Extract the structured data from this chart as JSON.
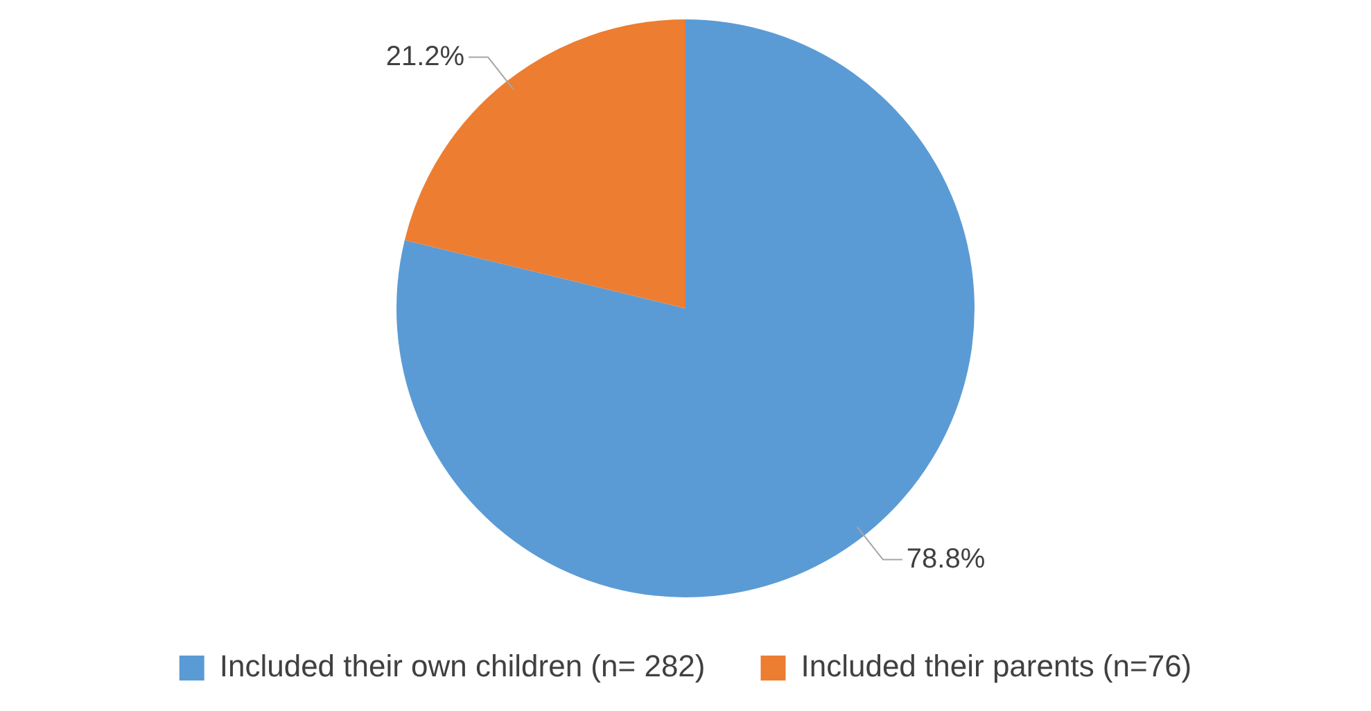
{
  "chart_data": {
    "type": "pie",
    "categories": [
      "Included their own children (n= 282)",
      "Included their parents (n=76)"
    ],
    "values": [
      78.8,
      21.2
    ],
    "colors": [
      "#5b9bd5",
      "#ed7d31"
    ],
    "value_labels": [
      "78.8%",
      "21.2%"
    ],
    "legend": "bottom"
  }
}
